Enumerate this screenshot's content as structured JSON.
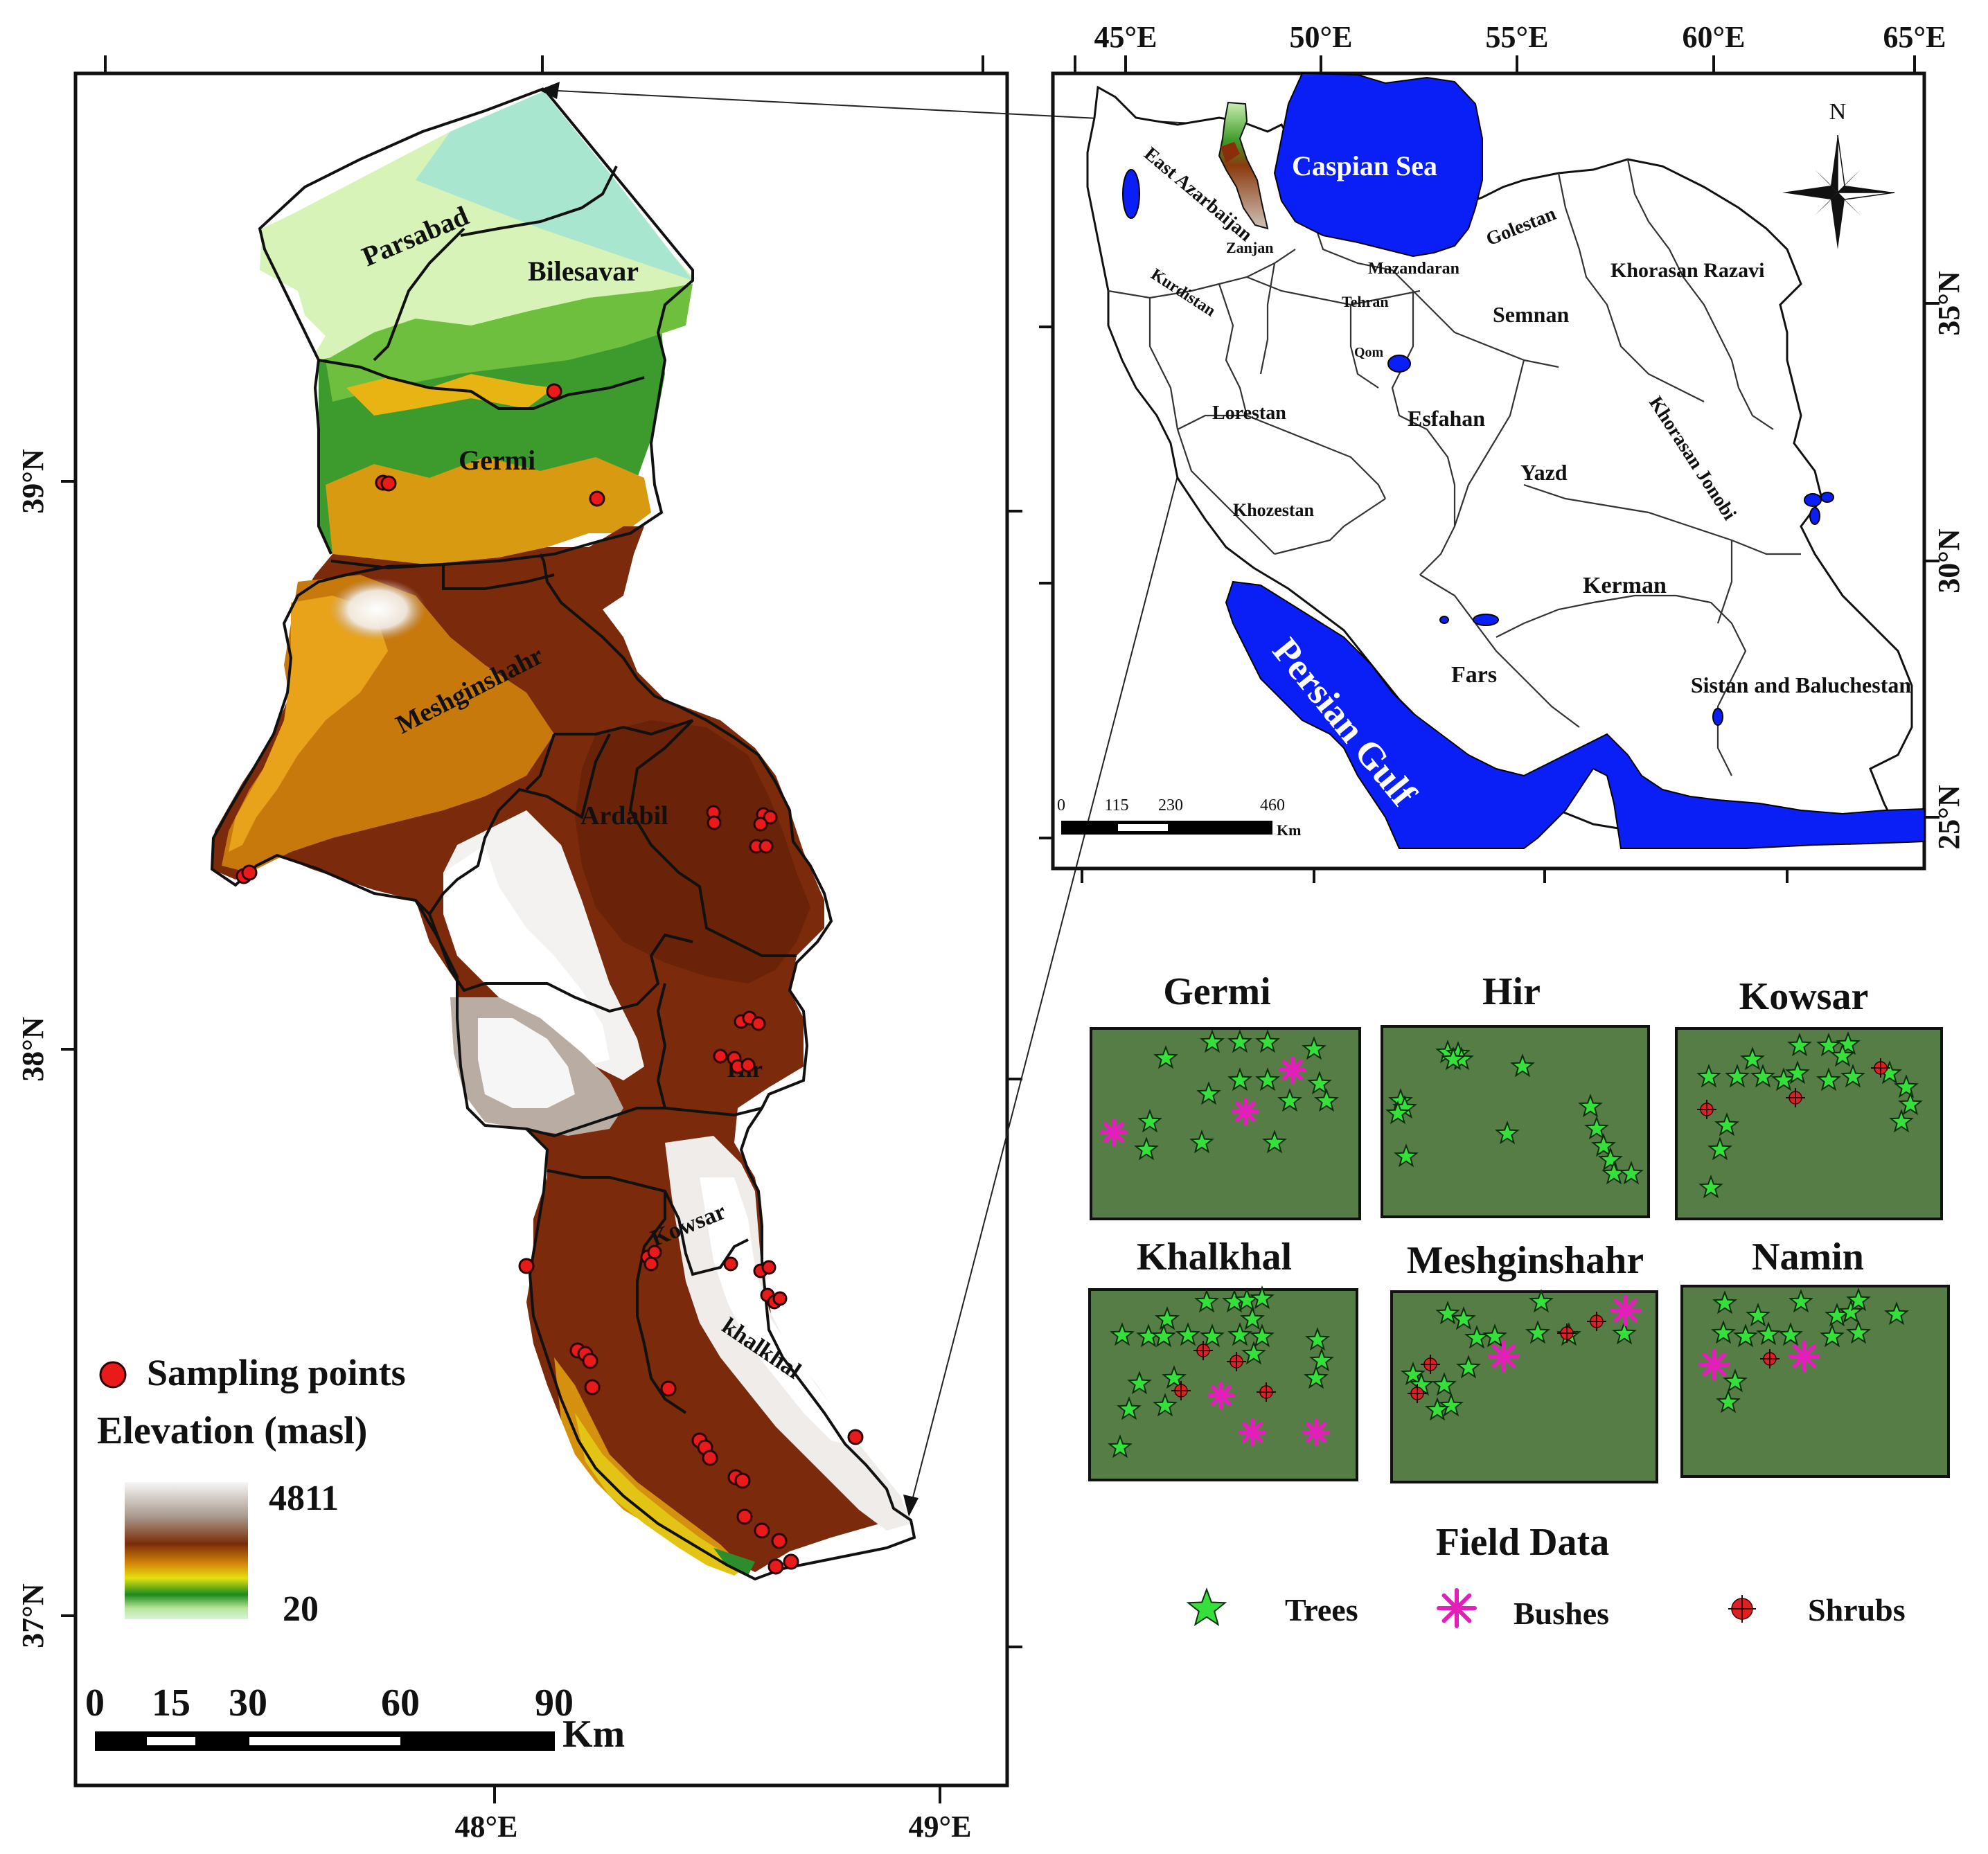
{
  "main_map": {
    "lon_labels": [
      "48°E",
      "49°E"
    ],
    "lat_labels": [
      "39°N",
      "38°N",
      "37°N"
    ],
    "districts": [
      "Parsabad",
      "Bilesavar",
      "Germi",
      "Meshginshahr",
      "Ardabil",
      "Hir",
      "Kowsar",
      "khalkhal"
    ],
    "legend": {
      "sampling_label": "Sampling points",
      "elevation_title": "Elevation (masl)",
      "elev_max": "4811",
      "elev_min": "20"
    },
    "scale": {
      "ticks": [
        "0",
        "15",
        "30",
        "60",
        "90"
      ],
      "unit": "Km"
    }
  },
  "inset_map": {
    "lon_labels": [
      "45°E",
      "50°E",
      "55°E",
      "60°E",
      "65°E"
    ],
    "lat_labels": [
      "35°N",
      "30°N",
      "25°N"
    ],
    "seas": [
      "Caspian Sea",
      "Persian Gulf"
    ],
    "provinces": [
      "East Azarbaijan",
      "Zanjan",
      "Kurdistan",
      "Mazandaran",
      "Tehran",
      "Qom",
      "Golestan",
      "Khorasan Razavi",
      "Semnan",
      "Lorestan",
      "Esfahan",
      "Yazd",
      "Khorasan Jonobi",
      "Khozestan",
      "Kerman",
      "Fars",
      "Sistan and Baluchestan"
    ],
    "north_label": "N",
    "scale": {
      "ticks": [
        "0",
        "115",
        "230",
        "460"
      ],
      "unit": "Km"
    }
  },
  "field_data": {
    "title": "Field Data",
    "legend": {
      "trees": "Trees",
      "bushes": "Bushes",
      "shrubs": "Shrubs"
    },
    "plots": [
      "Germi",
      "Hir",
      "Kowsar",
      "Khalkhal",
      "Meshginshahr",
      "Namin"
    ]
  },
  "colors": {
    "sea": "#0a1ff5",
    "plot_background": "#567d45",
    "tree": "#36e03a",
    "bush": "#e21fb9",
    "shrub": "#e02020",
    "sampling_point": "#e81a1a"
  }
}
